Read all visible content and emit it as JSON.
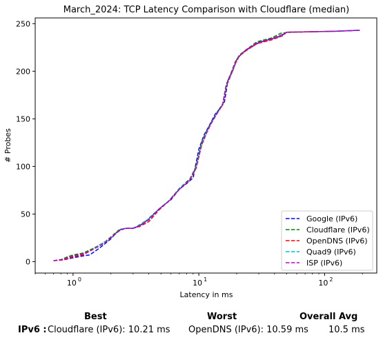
{
  "chart_data": {
    "type": "line",
    "title": "March_2024: TCP Latency Comparison with Cloudflare (median)",
    "xlabel": "Latency in ms",
    "ylabel": "# Probes",
    "xscale": "log",
    "xlim": [
      0.5,
      260
    ],
    "ylim": [
      -12,
      256
    ],
    "xticks": [
      {
        "value": 1,
        "label": "10",
        "exp": "0"
      },
      {
        "value": 10,
        "label": "10",
        "exp": "1"
      },
      {
        "value": 100,
        "label": "10",
        "exp": "2"
      }
    ],
    "yticks": [
      0,
      50,
      100,
      150,
      200,
      250
    ],
    "grid": false,
    "legend_position": "lower right",
    "line_style": "dashed",
    "series": [
      {
        "name": "Google (IPv6)",
        "color": "#0000ff",
        "points": [
          [
            0.7,
            1
          ],
          [
            0.85,
            2
          ],
          [
            1.0,
            4
          ],
          [
            1.2,
            6
          ],
          [
            1.35,
            7
          ],
          [
            1.5,
            11
          ],
          [
            1.65,
            15
          ],
          [
            1.8,
            19
          ],
          [
            2.0,
            24
          ],
          [
            2.2,
            30
          ],
          [
            2.4,
            34
          ],
          [
            2.7,
            35
          ],
          [
            3.0,
            35
          ],
          [
            3.3,
            37
          ],
          [
            3.7,
            41
          ],
          [
            4.2,
            48
          ],
          [
            5.0,
            57
          ],
          [
            6.0,
            65
          ],
          [
            7.0,
            76
          ],
          [
            8.0,
            82
          ],
          [
            9.0,
            88
          ],
          [
            10.0,
            118
          ],
          [
            11.0,
            133
          ],
          [
            12.0,
            142
          ],
          [
            13.5,
            155
          ],
          [
            15.0,
            162
          ],
          [
            16.0,
            168
          ],
          [
            17.0,
            190
          ],
          [
            18.5,
            200
          ],
          [
            20.0,
            212
          ],
          [
            22.0,
            219
          ],
          [
            25.0,
            224
          ],
          [
            30.0,
            230
          ],
          [
            40.0,
            235
          ],
          [
            45.0,
            237
          ],
          [
            50.0,
            241
          ],
          [
            80.0,
            241.5
          ],
          [
            120.0,
            242
          ],
          [
            190.0,
            243
          ]
        ]
      },
      {
        "name": "Cloudflare (IPv6)",
        "color": "#008000",
        "points": [
          [
            0.7,
            1
          ],
          [
            0.8,
            2
          ],
          [
            0.9,
            5
          ],
          [
            1.0,
            7
          ],
          [
            1.2,
            9
          ],
          [
            1.4,
            13
          ],
          [
            1.6,
            17
          ],
          [
            1.8,
            21
          ],
          [
            2.0,
            26
          ],
          [
            2.3,
            33
          ],
          [
            2.6,
            35
          ],
          [
            3.0,
            35
          ],
          [
            3.4,
            38
          ],
          [
            4.0,
            44
          ],
          [
            4.8,
            55
          ],
          [
            5.8,
            64
          ],
          [
            7.0,
            77
          ],
          [
            8.5,
            87
          ],
          [
            9.5,
            100
          ],
          [
            10.5,
            125
          ],
          [
            11.5,
            137
          ],
          [
            12.5,
            146
          ],
          [
            14.0,
            157
          ],
          [
            15.5,
            166
          ],
          [
            16.5,
            186
          ],
          [
            18.0,
            198
          ],
          [
            19.5,
            210
          ],
          [
            21.0,
            217
          ],
          [
            24.0,
            223
          ],
          [
            29.0,
            231
          ],
          [
            38.0,
            235
          ],
          [
            45.0,
            240
          ],
          [
            55.0,
            241
          ],
          [
            80.0,
            241.5
          ],
          [
            120.0,
            242
          ],
          [
            190.0,
            243
          ]
        ]
      },
      {
        "name": "OpenDNS (IPv6)",
        "color": "#ff0000",
        "points": [
          [
            0.7,
            1
          ],
          [
            0.8,
            1.5
          ],
          [
            0.9,
            3
          ],
          [
            1.0,
            5
          ],
          [
            1.2,
            7
          ],
          [
            1.4,
            12
          ],
          [
            1.6,
            17
          ],
          [
            1.8,
            21
          ],
          [
            2.0,
            25
          ],
          [
            2.3,
            32
          ],
          [
            2.6,
            35
          ],
          [
            3.0,
            35
          ],
          [
            3.4,
            37
          ],
          [
            4.0,
            42
          ],
          [
            4.8,
            54
          ],
          [
            5.8,
            64
          ],
          [
            7.0,
            76
          ],
          [
            8.5,
            86
          ],
          [
            9.5,
            98
          ],
          [
            10.5,
            122
          ],
          [
            11.5,
            135
          ],
          [
            12.5,
            145
          ],
          [
            14.0,
            156
          ],
          [
            15.5,
            165
          ],
          [
            16.5,
            184
          ],
          [
            18.0,
            196
          ],
          [
            19.5,
            208
          ],
          [
            21.0,
            216
          ],
          [
            24.0,
            222
          ],
          [
            29.0,
            229
          ],
          [
            38.0,
            233
          ],
          [
            46.0,
            237
          ],
          [
            50.0,
            241
          ],
          [
            80.0,
            241.5
          ],
          [
            120.0,
            242
          ],
          [
            190.0,
            243
          ]
        ]
      },
      {
        "name": "Quad9 (IPv6)",
        "color": "#00bfbf",
        "points": [
          [
            0.7,
            1
          ],
          [
            0.8,
            2
          ],
          [
            0.9,
            4
          ],
          [
            1.0,
            6
          ],
          [
            1.2,
            8
          ],
          [
            1.4,
            12
          ],
          [
            1.6,
            17
          ],
          [
            1.8,
            21
          ],
          [
            2.0,
            25
          ],
          [
            2.3,
            32
          ],
          [
            2.6,
            35
          ],
          [
            3.0,
            35
          ],
          [
            3.4,
            39
          ],
          [
            4.0,
            45
          ],
          [
            4.8,
            55
          ],
          [
            5.8,
            64
          ],
          [
            7.0,
            77
          ],
          [
            8.5,
            86
          ],
          [
            9.5,
            99
          ],
          [
            10.5,
            123
          ],
          [
            11.5,
            136
          ],
          [
            12.5,
            145
          ],
          [
            14.0,
            156
          ],
          [
            15.5,
            165
          ],
          [
            16.5,
            185
          ],
          [
            18.0,
            197
          ],
          [
            19.5,
            209
          ],
          [
            21.0,
            216
          ],
          [
            24.0,
            223
          ],
          [
            29.0,
            230
          ],
          [
            38.0,
            234
          ],
          [
            45.0,
            238
          ],
          [
            50.0,
            241
          ],
          [
            80.0,
            241.5
          ],
          [
            120.0,
            242
          ],
          [
            190.0,
            243
          ]
        ]
      },
      {
        "name": "ISP (IPv6)",
        "color": "#bf00bf",
        "points": [
          [
            0.7,
            1
          ],
          [
            0.8,
            2
          ],
          [
            0.9,
            4
          ],
          [
            1.0,
            6
          ],
          [
            1.2,
            8
          ],
          [
            1.4,
            12
          ],
          [
            1.6,
            16
          ],
          [
            1.8,
            20
          ],
          [
            2.0,
            25
          ],
          [
            2.3,
            32
          ],
          [
            2.6,
            35
          ],
          [
            3.0,
            35
          ],
          [
            3.4,
            38
          ],
          [
            4.0,
            44
          ],
          [
            4.8,
            55
          ],
          [
            5.8,
            64
          ],
          [
            7.0,
            76
          ],
          [
            8.5,
            86
          ],
          [
            9.5,
            98
          ],
          [
            10.5,
            122
          ],
          [
            11.5,
            135
          ],
          [
            12.5,
            145
          ],
          [
            14.0,
            156
          ],
          [
            15.5,
            165
          ],
          [
            16.5,
            185
          ],
          [
            18.0,
            197
          ],
          [
            19.5,
            209
          ],
          [
            21.0,
            216
          ],
          [
            24.0,
            223
          ],
          [
            29.0,
            230
          ],
          [
            38.0,
            234
          ],
          [
            45.0,
            238
          ],
          [
            50.0,
            241
          ],
          [
            80.0,
            241.5
          ],
          [
            120.0,
            242
          ],
          [
            190.0,
            243
          ]
        ]
      }
    ]
  },
  "summary": {
    "headers": {
      "best": "Best",
      "worst": "Worst",
      "overall_avg": "Overall Avg"
    },
    "row": {
      "label": "IPv6 :",
      "best": "Cloudflare (IPv6): 10.21 ms",
      "worst": "OpenDNS (IPv6): 10.59 ms",
      "overall_avg": "10.5 ms"
    }
  }
}
